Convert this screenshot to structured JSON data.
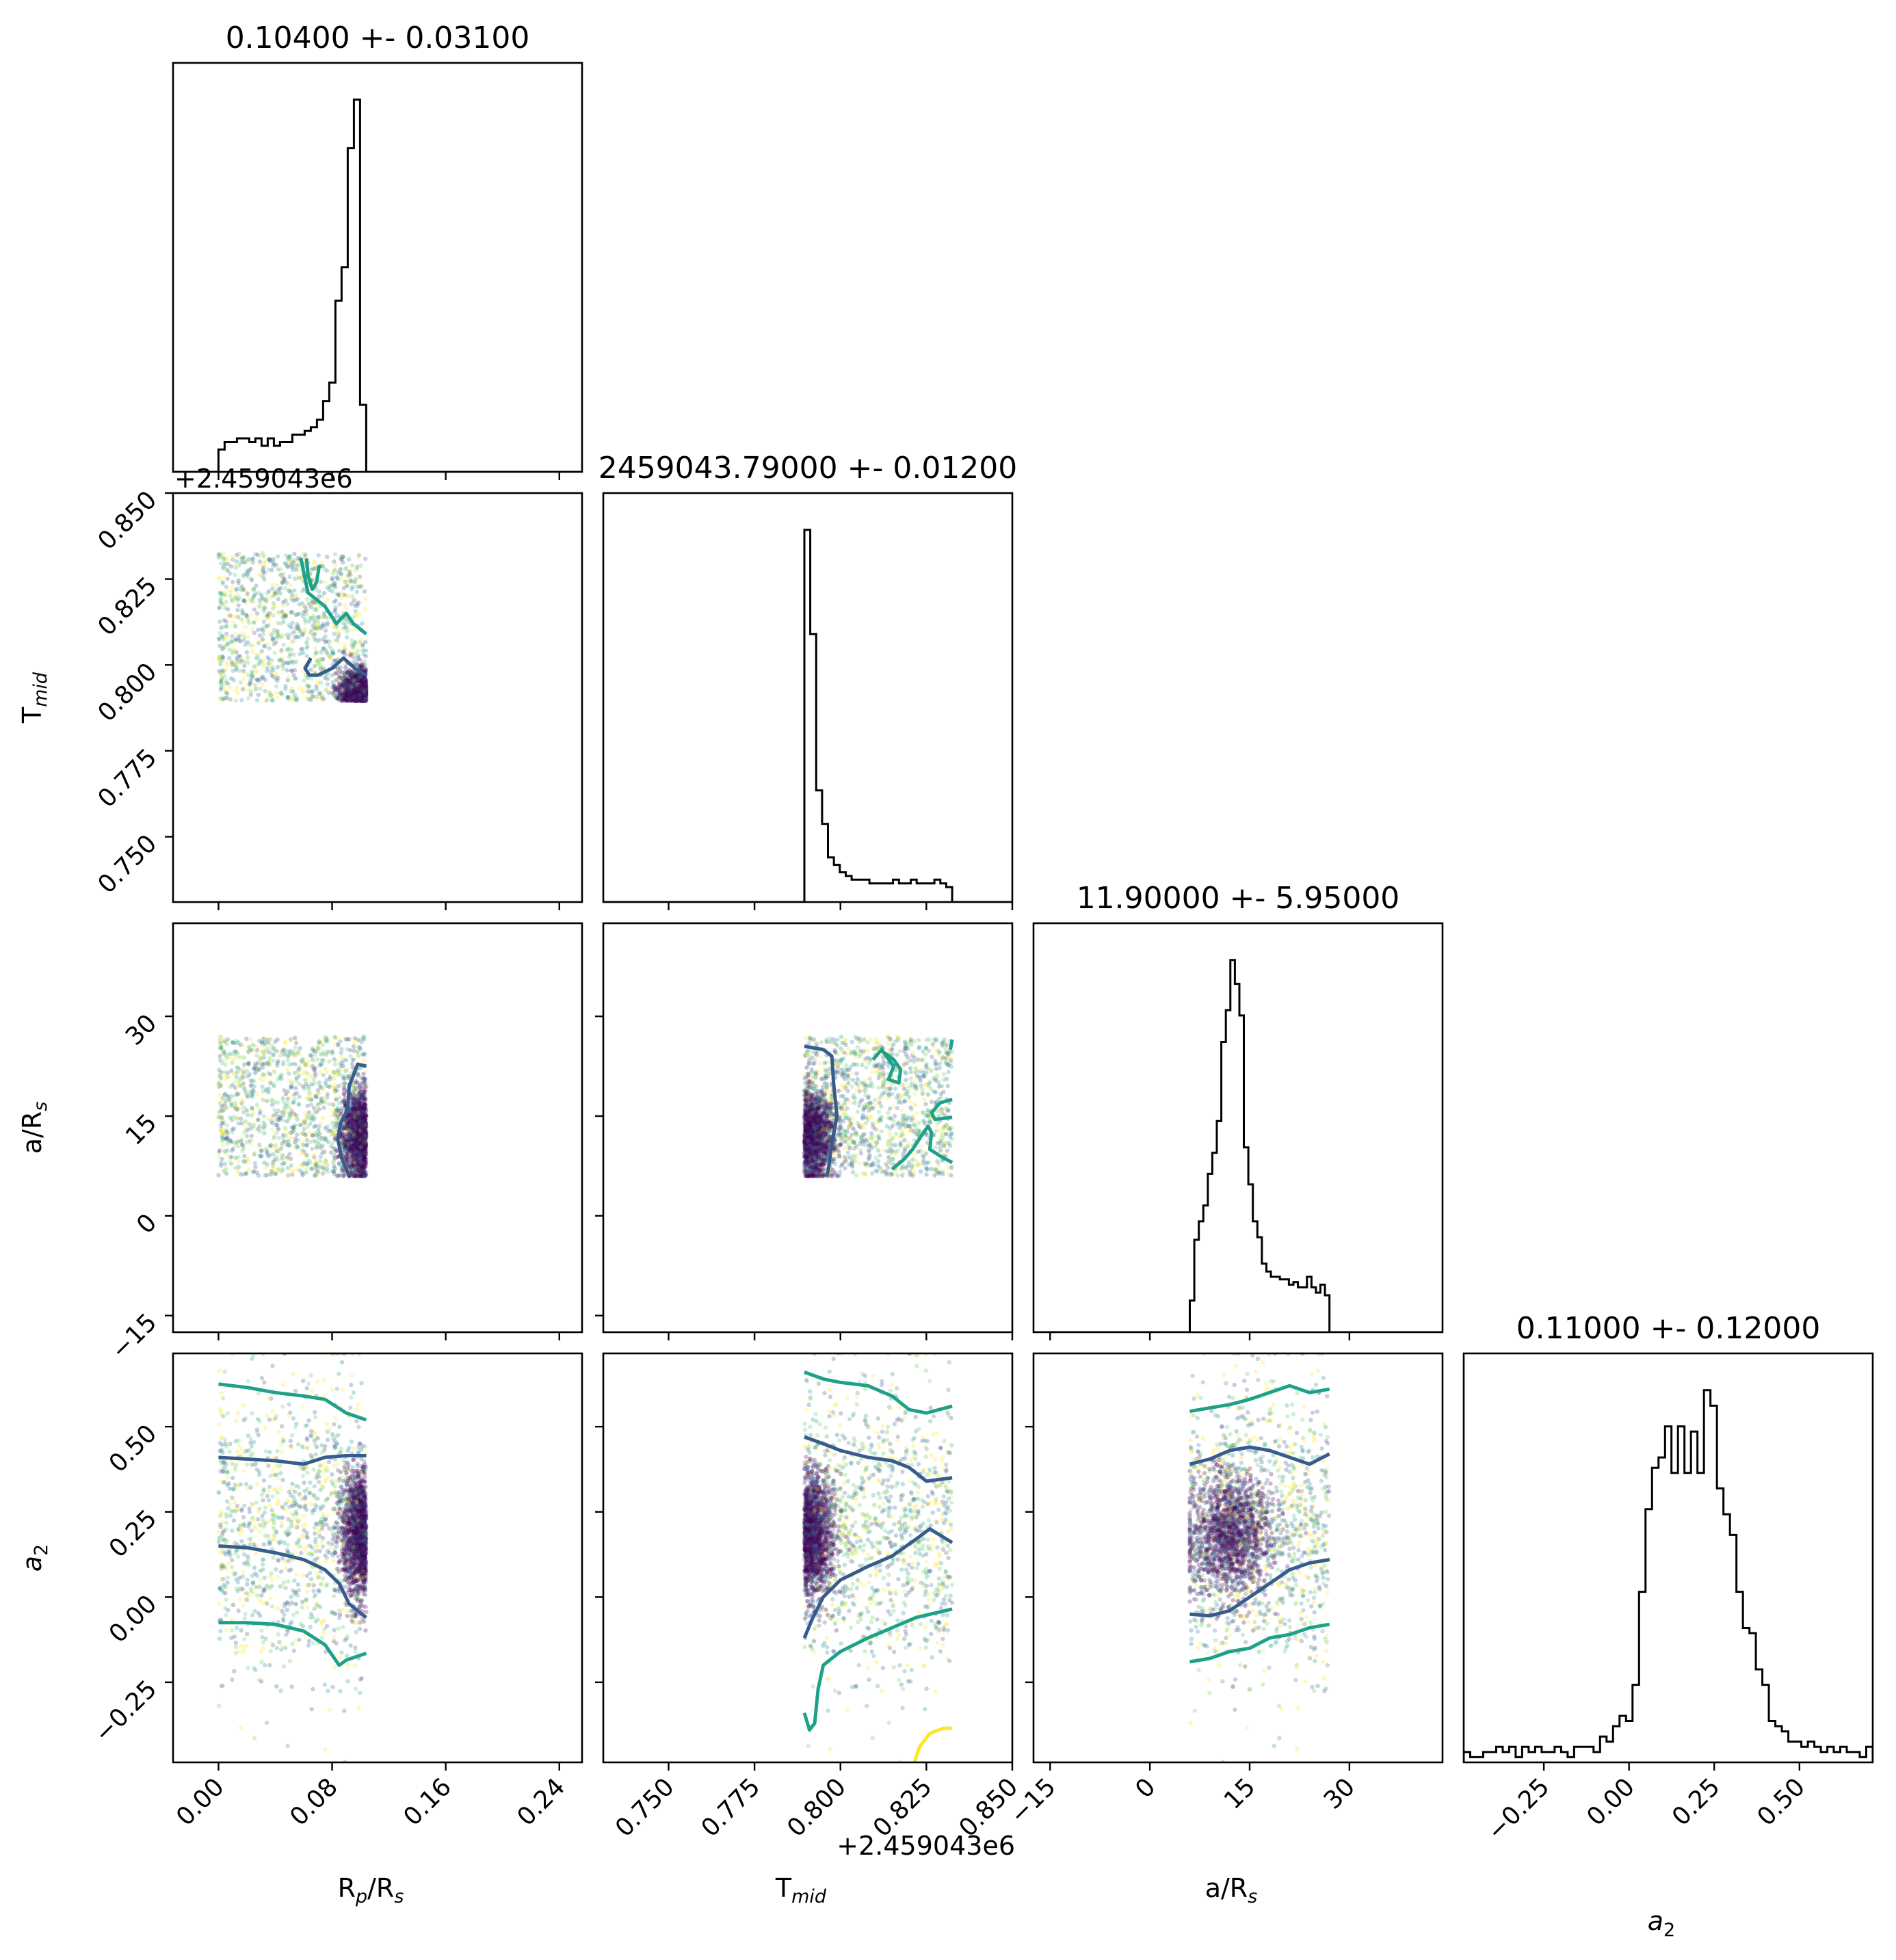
{
  "chart_data": {
    "type": "corner",
    "parameters": [
      {
        "key": "rp",
        "label": "R",
        "label_sub": "p",
        "label_tail": "/R",
        "label_tail_sub": "s",
        "range": [
          -0.032,
          0.256
        ],
        "ticks": [
          "0.00",
          "0.08",
          "0.16",
          "0.24"
        ],
        "tick_values": [
          0.0,
          0.08,
          0.16,
          0.24
        ],
        "offset_text": ""
      },
      {
        "key": "tmid",
        "label": "T",
        "label_sub": "mid",
        "label_tail": "",
        "label_tail_sub": "",
        "range": [
          0.731,
          0.85
        ],
        "ticks": [
          "0.750",
          "0.775",
          "0.800",
          "0.825",
          "0.850"
        ],
        "tick_values": [
          0.75,
          0.775,
          0.8,
          0.825,
          0.85
        ],
        "offset_text": "+2.459043e6"
      },
      {
        "key": "ars",
        "label": "a/R",
        "label_sub": "s",
        "label_tail": "",
        "label_tail_sub": "",
        "range": [
          -17.5,
          44.0
        ],
        "ticks": [
          "−15",
          "0",
          "15",
          "30"
        ],
        "tick_values": [
          -15,
          0,
          15,
          30
        ],
        "offset_text": ""
      },
      {
        "key": "a2",
        "label": "a",
        "label_sub": "2",
        "label_tail": "",
        "label_tail_sub": "",
        "range": [
          -0.485,
          0.715
        ],
        "ticks": [
          "−0.25",
          "0.00",
          "0.25",
          "0.50"
        ],
        "tick_values": [
          -0.25,
          0.0,
          0.25,
          0.5
        ],
        "offset_text": ""
      }
    ],
    "titles": [
      "0.10400 +- 0.03100",
      "2459043.79000 +- 0.01200",
      "11.90000 +- 5.95000",
      "0.11000 +- 0.12000"
    ],
    "histograms": [
      {
        "edges_range": [
          0.0,
          0.104
        ],
        "counts": [
          6,
          8,
          8,
          9,
          9,
          8,
          9,
          7,
          9,
          7,
          8,
          8,
          10,
          10,
          11,
          12,
          14,
          19,
          24,
          46,
          55,
          87,
          100,
          18
        ]
      },
      {
        "edges_range": [
          0.7895,
          0.8325
        ],
        "counts": [
          100,
          72,
          30,
          21,
          12,
          10,
          8,
          7,
          6,
          6,
          6,
          5,
          5,
          5,
          5,
          6,
          5,
          5,
          6,
          5,
          5,
          5,
          6,
          5,
          4
        ]
      },
      {
        "edges_range": [
          6.0,
          27.0
        ],
        "counts": [
          12,
          35,
          42,
          48,
          60,
          68,
          80,
          110,
          122,
          141,
          132,
          120,
          70,
          56,
          42,
          36,
          26,
          23,
          21,
          21,
          20,
          20,
          18,
          19,
          17,
          17,
          21,
          17,
          15,
          18,
          14
        ]
      },
      {
        "edges_range": [
          -0.485,
          0.715
        ],
        "counts": [
          2,
          1,
          1,
          2,
          2,
          3,
          2,
          3,
          1,
          3,
          2,
          3,
          2,
          2,
          3,
          2,
          1,
          3,
          3,
          3,
          2,
          5,
          4,
          7,
          9,
          8,
          15,
          33,
          49,
          57,
          59,
          65,
          56,
          65,
          56,
          64,
          56,
          72,
          69,
          53,
          48,
          44,
          33,
          26,
          25,
          18,
          15,
          8,
          7,
          6,
          4,
          4,
          3,
          4,
          3,
          2,
          3,
          2,
          3,
          2,
          2,
          1,
          3
        ]
      }
    ],
    "scatter_regions": {
      "rp": [
        0.0,
        0.104
      ],
      "tmid": [
        0.7895,
        0.8325
      ],
      "ars": [
        6.0,
        27.0
      ],
      "a2": [
        -0.485,
        0.715
      ]
    },
    "contours": [
      {
        "row": 1,
        "col": 0,
        "level": "outer",
        "points": [
          [
            0.062,
            0.831
          ],
          [
            0.063,
            0.826
          ],
          [
            0.066,
            0.822
          ],
          [
            0.069,
            0.824
          ],
          [
            0.071,
            0.829
          ]
        ]
      },
      {
        "row": 1,
        "col": 0,
        "level": "outer",
        "points": [
          [
            0.058,
            0.831
          ],
          [
            0.063,
            0.821
          ],
          [
            0.075,
            0.817
          ],
          [
            0.083,
            0.812
          ],
          [
            0.09,
            0.815
          ],
          [
            0.095,
            0.812
          ],
          [
            0.104,
            0.809
          ]
        ]
      },
      {
        "row": 1,
        "col": 0,
        "level": "inner",
        "points": [
          [
            0.104,
            0.797
          ],
          [
            0.096,
            0.799
          ],
          [
            0.088,
            0.802
          ],
          [
            0.08,
            0.799
          ],
          [
            0.07,
            0.797
          ],
          [
            0.064,
            0.797
          ],
          [
            0.061,
            0.799
          ],
          [
            0.065,
            0.802
          ]
        ]
      },
      {
        "row": 2,
        "col": 0,
        "level": "inner",
        "points": [
          [
            0.104,
            22.5
          ],
          [
            0.098,
            22.8
          ],
          [
            0.092,
            19.5
          ],
          [
            0.091,
            16.0
          ],
          [
            0.086,
            14.0
          ],
          [
            0.084,
            11.5
          ],
          [
            0.087,
            8.5
          ],
          [
            0.092,
            6.0
          ]
        ]
      },
      {
        "row": 2,
        "col": 1,
        "level": "inner",
        "points": [
          [
            0.7895,
            25.5
          ],
          [
            0.795,
            25.0
          ],
          [
            0.7975,
            24.0
          ],
          [
            0.798,
            20.0
          ],
          [
            0.799,
            15.0
          ],
          [
            0.7975,
            11.0
          ],
          [
            0.7965,
            7.0
          ],
          [
            0.796,
            6.0
          ]
        ]
      },
      {
        "row": 2,
        "col": 1,
        "level": "outer",
        "points": [
          [
            0.8095,
            23.5
          ],
          [
            0.812,
            25.0
          ],
          [
            0.8155,
            22.5
          ],
          [
            0.814,
            20.5
          ],
          [
            0.817,
            20.0
          ],
          [
            0.8175,
            22.0
          ],
          [
            0.8155,
            23.5
          ],
          [
            0.812,
            24.8
          ]
        ]
      },
      {
        "row": 2,
        "col": 1,
        "level": "outer",
        "points": [
          [
            0.8325,
            26.5
          ],
          [
            0.832,
            25.0
          ]
        ]
      },
      {
        "row": 2,
        "col": 1,
        "level": "outer",
        "points": [
          [
            0.8325,
            17.5
          ],
          [
            0.829,
            17.0
          ],
          [
            0.8265,
            15.5
          ],
          [
            0.8275,
            14.5
          ],
          [
            0.8325,
            14.8
          ]
        ]
      },
      {
        "row": 2,
        "col": 1,
        "level": "outer",
        "points": [
          [
            0.8325,
            8.0
          ],
          [
            0.829,
            9.0
          ],
          [
            0.826,
            10.0
          ],
          [
            0.8265,
            12.5
          ],
          [
            0.8255,
            13.5
          ],
          [
            0.8235,
            12.0
          ],
          [
            0.821,
            10.0
          ],
          [
            0.8185,
            8.5
          ],
          [
            0.815,
            7.0
          ]
        ]
      },
      {
        "row": 3,
        "col": 0,
        "level": "outer",
        "points": [
          [
            0.0,
            0.625
          ],
          [
            0.02,
            0.615
          ],
          [
            0.04,
            0.6
          ],
          [
            0.06,
            0.59
          ],
          [
            0.075,
            0.58
          ],
          [
            0.09,
            0.54
          ],
          [
            0.104,
            0.52
          ]
        ]
      },
      {
        "row": 3,
        "col": 0,
        "level": "inner",
        "points": [
          [
            0.0,
            0.41
          ],
          [
            0.02,
            0.405
          ],
          [
            0.04,
            0.4
          ],
          [
            0.06,
            0.39
          ],
          [
            0.075,
            0.41
          ],
          [
            0.09,
            0.415
          ],
          [
            0.104,
            0.415
          ]
        ]
      },
      {
        "row": 3,
        "col": 0,
        "level": "inner",
        "points": [
          [
            0.0,
            0.15
          ],
          [
            0.02,
            0.145
          ],
          [
            0.04,
            0.13
          ],
          [
            0.06,
            0.11
          ],
          [
            0.075,
            0.08
          ],
          [
            0.085,
            0.04
          ],
          [
            0.092,
            -0.02
          ],
          [
            0.104,
            -0.06
          ]
        ]
      },
      {
        "row": 3,
        "col": 0,
        "level": "outer",
        "points": [
          [
            0.0,
            -0.075
          ],
          [
            0.02,
            -0.075
          ],
          [
            0.04,
            -0.08
          ],
          [
            0.06,
            -0.1
          ],
          [
            0.075,
            -0.14
          ],
          [
            0.085,
            -0.2
          ],
          [
            0.09,
            -0.185
          ],
          [
            0.104,
            -0.165
          ]
        ]
      },
      {
        "row": 3,
        "col": 1,
        "level": "outer",
        "points": [
          [
            0.7895,
            0.66
          ],
          [
            0.795,
            0.64
          ],
          [
            0.8,
            0.63
          ],
          [
            0.808,
            0.62
          ],
          [
            0.815,
            0.59
          ],
          [
            0.82,
            0.55
          ],
          [
            0.825,
            0.54
          ],
          [
            0.8325,
            0.56
          ]
        ]
      },
      {
        "row": 3,
        "col": 1,
        "level": "inner",
        "points": [
          [
            0.7895,
            0.47
          ],
          [
            0.795,
            0.45
          ],
          [
            0.8,
            0.43
          ],
          [
            0.808,
            0.41
          ],
          [
            0.815,
            0.4
          ],
          [
            0.82,
            0.38
          ],
          [
            0.825,
            0.34
          ],
          [
            0.8325,
            0.35
          ]
        ]
      },
      {
        "row": 3,
        "col": 1,
        "level": "inner",
        "points": [
          [
            0.7895,
            -0.12
          ],
          [
            0.792,
            -0.06
          ],
          [
            0.795,
            0.0
          ],
          [
            0.8,
            0.05
          ],
          [
            0.808,
            0.09
          ],
          [
            0.815,
            0.12
          ],
          [
            0.822,
            0.17
          ],
          [
            0.826,
            0.2
          ],
          [
            0.8325,
            0.16
          ]
        ]
      },
      {
        "row": 3,
        "col": 1,
        "level": "outer",
        "points": [
          [
            0.7895,
            -0.34
          ],
          [
            0.791,
            -0.39
          ],
          [
            0.7925,
            -0.37
          ],
          [
            0.7935,
            -0.27
          ],
          [
            0.795,
            -0.2
          ],
          [
            0.8,
            -0.16
          ],
          [
            0.808,
            -0.12
          ],
          [
            0.815,
            -0.09
          ],
          [
            0.822,
            -0.06
          ],
          [
            0.8325,
            -0.035
          ]
        ]
      },
      {
        "row": 3,
        "col": 1,
        "level": "core",
        "points": [
          [
            0.8215,
            -0.485
          ],
          [
            0.823,
            -0.44
          ],
          [
            0.826,
            -0.4
          ],
          [
            0.83,
            -0.385
          ],
          [
            0.8325,
            -0.385
          ]
        ]
      },
      {
        "row": 3,
        "col": 2,
        "level": "outer",
        "points": [
          [
            6.0,
            0.545
          ],
          [
            9.0,
            0.555
          ],
          [
            12.0,
            0.565
          ],
          [
            15.0,
            0.58
          ],
          [
            18.0,
            0.6
          ],
          [
            21.0,
            0.62
          ],
          [
            24.0,
            0.6
          ],
          [
            27.0,
            0.61
          ]
        ]
      },
      {
        "row": 3,
        "col": 2,
        "level": "inner",
        "points": [
          [
            6.0,
            0.39
          ],
          [
            9.0,
            0.405
          ],
          [
            12.0,
            0.43
          ],
          [
            15.0,
            0.44
          ],
          [
            18.0,
            0.43
          ],
          [
            21.0,
            0.41
          ],
          [
            24.0,
            0.39
          ],
          [
            27.0,
            0.42
          ]
        ]
      },
      {
        "row": 3,
        "col": 2,
        "level": "inner",
        "points": [
          [
            6.0,
            -0.05
          ],
          [
            9.0,
            -0.055
          ],
          [
            12.0,
            -0.04
          ],
          [
            15.0,
            0.0
          ],
          [
            18.0,
            0.04
          ],
          [
            21.0,
            0.08
          ],
          [
            24.0,
            0.1
          ],
          [
            27.0,
            0.11
          ]
        ]
      },
      {
        "row": 3,
        "col": 2,
        "level": "outer",
        "points": [
          [
            6.0,
            -0.19
          ],
          [
            9.0,
            -0.18
          ],
          [
            12.0,
            -0.16
          ],
          [
            15.0,
            -0.15
          ],
          [
            18.0,
            -0.12
          ],
          [
            21.0,
            -0.11
          ],
          [
            24.0,
            -0.09
          ],
          [
            27.0,
            -0.08
          ]
        ]
      }
    ],
    "colors": {
      "histogram": "#000000",
      "inner_contour": "#365c8d",
      "outer_contour": "#1fa187",
      "core_contour": "#fde725",
      "density_colormap": [
        "#440154",
        "#3b528b",
        "#21918c",
        "#5ec962",
        "#fde725"
      ]
    },
    "grid": false,
    "legend": "none"
  }
}
